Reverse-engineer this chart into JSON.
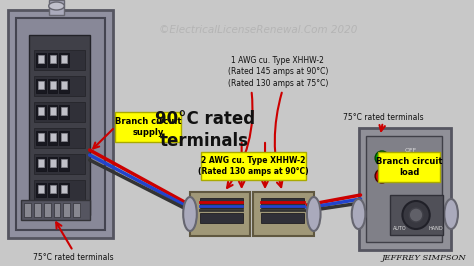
{
  "bg_color": "#c8c8c8",
  "title_text": "©ElectricalLicenseRenewal.Com 2020",
  "title_color": "#b0b0b0",
  "title_fontsize": 7.5,
  "author_text": "JEFFREY SIMPSON",
  "author_fontsize": 6,
  "labels": {
    "branch_supply": "Branch circuit\nsupply",
    "branch_load": "Branch circuit\nload",
    "terminals_75_left": "75°C rated terminals",
    "terminals_75_right": "75°C rated terminals",
    "terminals_90": "90°C rated\nterminals",
    "wire1": "1 AWG cu. Type XHHW-2\n(Rated 145 amps at 90°C)\n(Rated 130 amps at 75°C)",
    "wire2": "2 AWG cu. Type XHHW-2\n(Rated 130 amps at 90°C)"
  },
  "wire_colors": [
    "#cc0000",
    "#2244cc",
    "#333333"
  ],
  "box_yellow": "#ffff00",
  "arrow_color": "#cc0000",
  "panel_outer": "#9090a0",
  "panel_inner": "#888898",
  "panel_dark": "#404048",
  "connector_color": "#aaaabc",
  "load_color": "#909098"
}
